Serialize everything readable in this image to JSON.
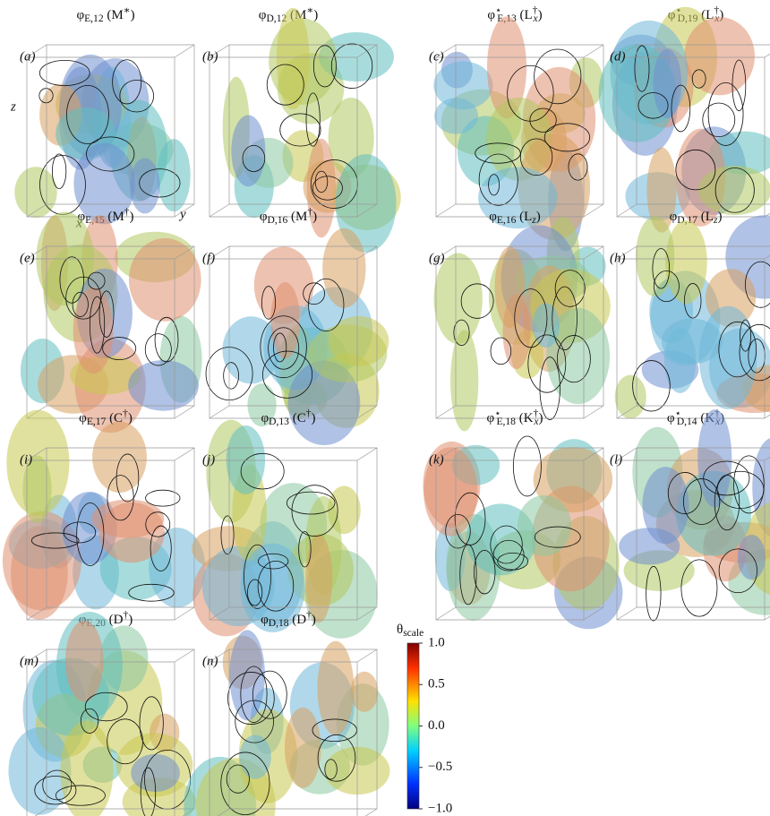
{
  "panels": [
    {
      "letter": "(a)",
      "title": [
        {
          "text": "φ"
        },
        {
          "text": "E,12",
          "shift": "sub"
        },
        {
          "text": " (M"
        },
        {
          "text": "∗",
          "shift": "sup"
        },
        {
          "text": ")"
        }
      ]
    },
    {
      "letter": "(b)",
      "title": [
        {
          "text": "φ"
        },
        {
          "text": "D,12",
          "shift": "sub"
        },
        {
          "text": " (M"
        },
        {
          "text": "∗",
          "shift": "sup"
        },
        {
          "text": ")"
        }
      ]
    },
    {
      "letter": "(c)",
      "title": [
        {
          "text": "φ"
        },
        {
          "text": "⋆",
          "shift": "sup"
        },
        {
          "text": "E,13",
          "shift": "sub"
        },
        {
          "text": " (L"
        },
        {
          "text": "†",
          "shift": "sup"
        },
        {
          "text": "x",
          "shift": "sub"
        },
        {
          "text": ")"
        }
      ]
    },
    {
      "letter": "(d)",
      "title": [
        {
          "text": "φ"
        },
        {
          "text": "⋆",
          "shift": "sup"
        },
        {
          "text": "D,19",
          "shift": "sub"
        },
        {
          "text": " (L"
        },
        {
          "text": "†",
          "shift": "sup"
        },
        {
          "text": "x",
          "shift": "sub"
        },
        {
          "text": ")"
        }
      ]
    },
    {
      "letter": "(e)",
      "title": [
        {
          "text": "φ"
        },
        {
          "text": "E,15",
          "shift": "sub"
        },
        {
          "text": " (M"
        },
        {
          "text": "†",
          "shift": "sup"
        },
        {
          "text": ")"
        }
      ]
    },
    {
      "letter": "(f)",
      "title": [
        {
          "text": "φ"
        },
        {
          "text": "D,16",
          "shift": "sub"
        },
        {
          "text": " (M"
        },
        {
          "text": "†",
          "shift": "sup"
        },
        {
          "text": ")"
        }
      ]
    },
    {
      "letter": "(g)",
      "title": [
        {
          "text": "φ"
        },
        {
          "text": "E,16",
          "shift": "sub"
        },
        {
          "text": " (L"
        },
        {
          "text": "z",
          "shift": "sub"
        },
        {
          "text": ")"
        }
      ]
    },
    {
      "letter": "(h)",
      "title": [
        {
          "text": "φ"
        },
        {
          "text": "D,17",
          "shift": "sub"
        },
        {
          "text": " (L"
        },
        {
          "text": "z",
          "shift": "sub"
        },
        {
          "text": ")"
        }
      ]
    },
    {
      "letter": "(i)",
      "title": [
        {
          "text": "φ"
        },
        {
          "text": "E,17",
          "shift": "sub"
        },
        {
          "text": " (C"
        },
        {
          "text": "†",
          "shift": "sup"
        },
        {
          "text": ")"
        }
      ]
    },
    {
      "letter": "(j)",
      "title": [
        {
          "text": "φ"
        },
        {
          "text": "D,13",
          "shift": "sub"
        },
        {
          "text": " (C"
        },
        {
          "text": "†",
          "shift": "sup"
        },
        {
          "text": ")"
        }
      ]
    },
    {
      "letter": "(k)",
      "title": [
        {
          "text": "φ"
        },
        {
          "text": "⋆",
          "shift": "sup"
        },
        {
          "text": "E,18",
          "shift": "sub"
        },
        {
          "text": " (K"
        },
        {
          "text": "†",
          "shift": "sup"
        },
        {
          "text": "x",
          "shift": "sub"
        },
        {
          "text": ")"
        }
      ]
    },
    {
      "letter": "(l)",
      "title": [
        {
          "text": "φ"
        },
        {
          "text": "⋆",
          "shift": "sup"
        },
        {
          "text": "D,14",
          "shift": "sub"
        },
        {
          "text": " (K"
        },
        {
          "text": "†",
          "shift": "sup"
        },
        {
          "text": "x",
          "shift": "sub"
        },
        {
          "text": ")"
        }
      ]
    },
    {
      "letter": "(m)",
      "title": [
        {
          "text": "φ"
        },
        {
          "text": "E,20",
          "shift": "sub"
        },
        {
          "text": " (D"
        },
        {
          "text": "†",
          "shift": "sup"
        },
        {
          "text": ")"
        }
      ]
    },
    {
      "letter": "(n)",
      "title": [
        {
          "text": "φ"
        },
        {
          "text": "D,18",
          "shift": "sub"
        },
        {
          "text": " (D"
        },
        {
          "text": "†",
          "shift": "sup"
        },
        {
          "text": ")"
        }
      ]
    }
  ],
  "axes_labels": {
    "x": "x",
    "y": "y",
    "z": "z"
  },
  "colorbar": {
    "label": [
      {
        "text": "θ"
      },
      {
        "text": "scale",
        "shift": "sub"
      }
    ],
    "clim": [
      -1,
      1
    ],
    "ticks": [
      {
        "value": 1,
        "label": "1.0"
      },
      {
        "value": 0.5,
        "label": "0.5"
      },
      {
        "value": 0,
        "label": "0.0"
      },
      {
        "value": -0.5,
        "label": "−0.5"
      },
      {
        "value": -1,
        "label": "−1.0"
      }
    ]
  }
}
